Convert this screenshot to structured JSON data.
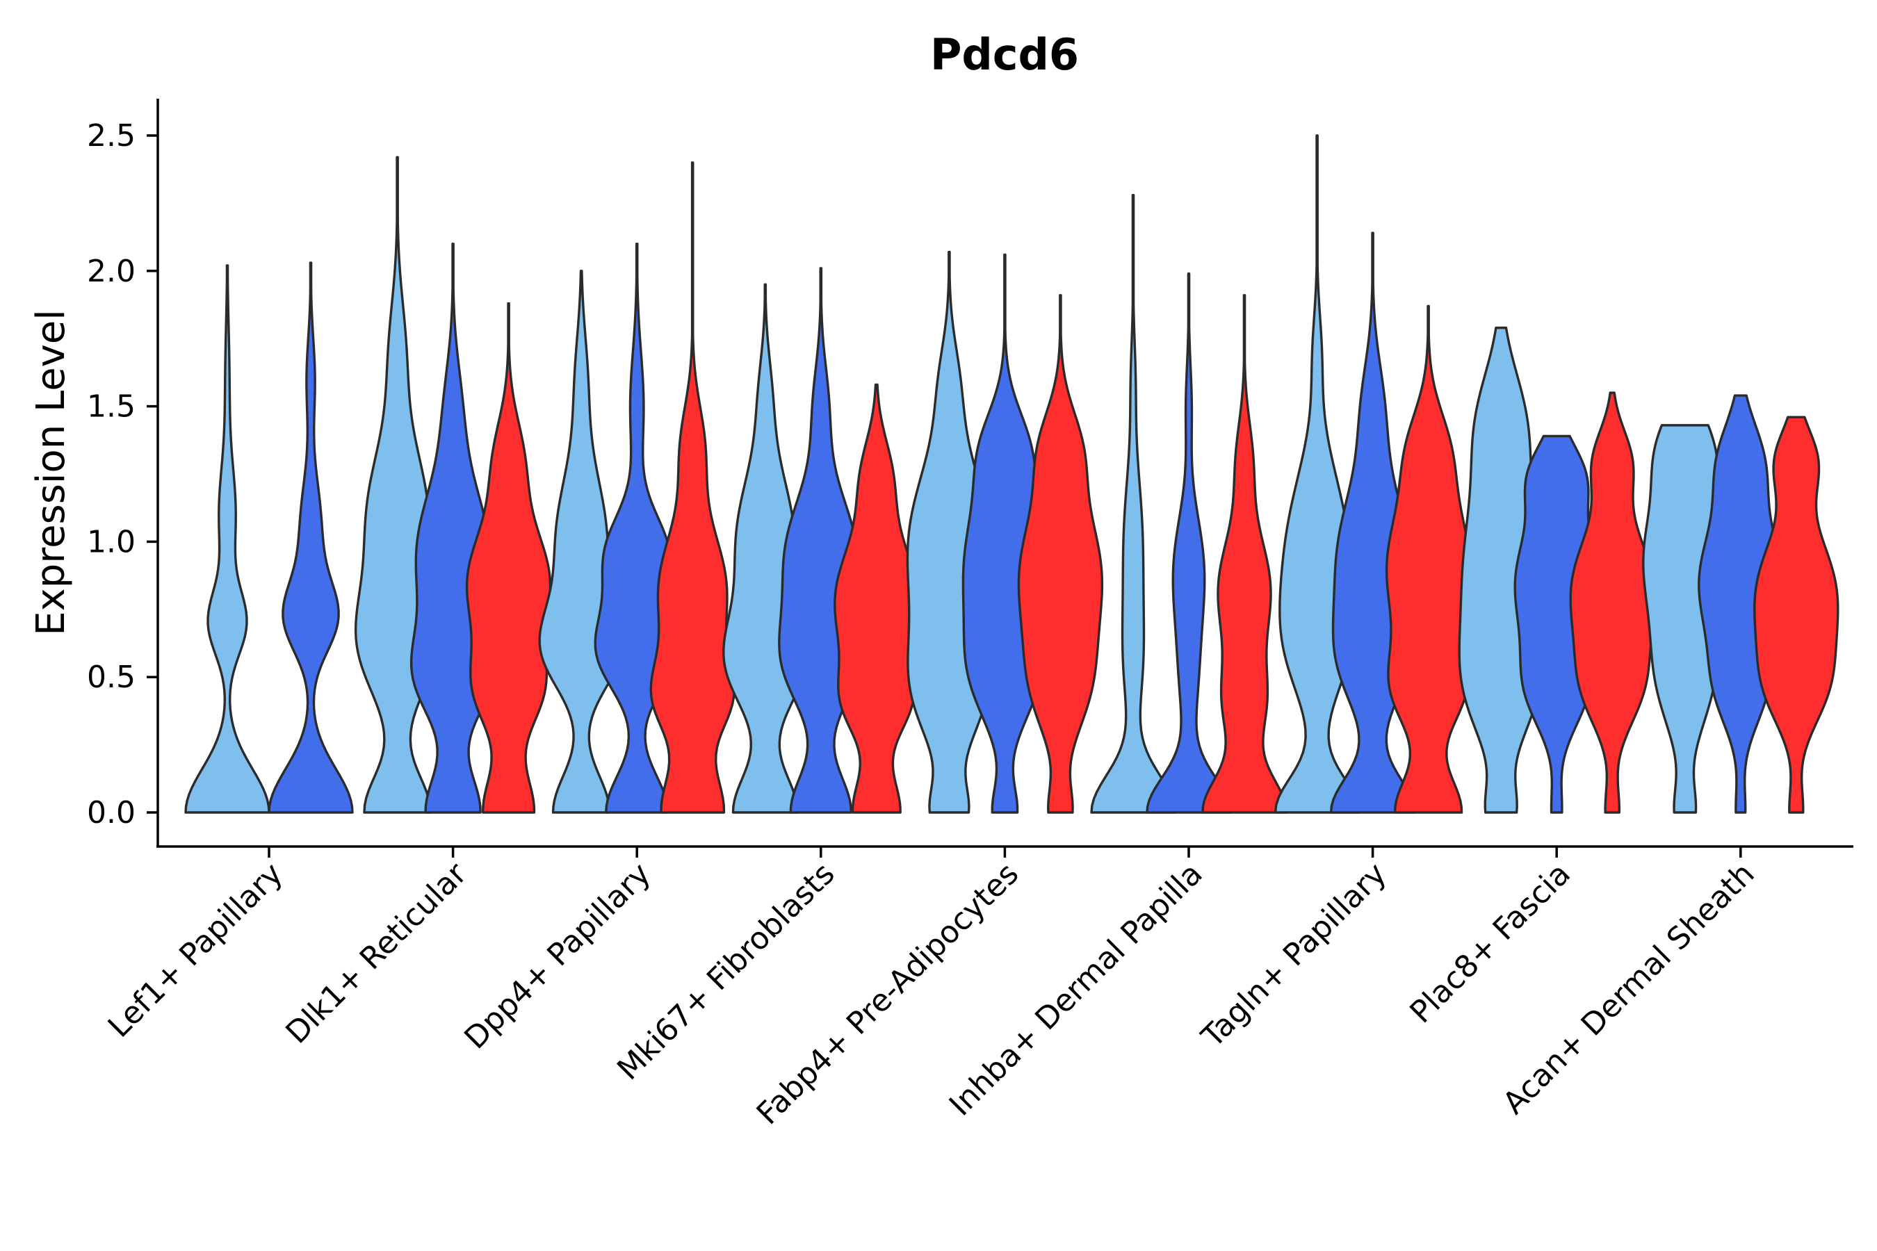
{
  "chart_data": {
    "type": "violin",
    "title": "Pdcd6",
    "xlabel": "",
    "ylabel": "Expression Level",
    "ylim": [
      -0.12,
      2.63
    ],
    "yticks": [
      0.0,
      0.5,
      1.0,
      1.5,
      2.0,
      2.5
    ],
    "ytick_labels": [
      "0.0",
      "0.5",
      "1.0",
      "1.5",
      "2.0",
      "2.5"
    ],
    "grid": false,
    "legend": "none",
    "series_colors": [
      "#7fbfed",
      "#436eeb",
      "#fe2e2e"
    ],
    "categories": [
      "Lef1+ Papillary",
      "Dlk1+ Reticular",
      "Dpp4+ Papillary",
      "Mki67+ Fibroblasts",
      "Fabp4+ Pre-Adipocytes",
      "Inhba+ Dermal Papilla",
      "Tagln+ Papillary",
      "Plac8+ Fascia",
      "Acan+ Dermal Sheath"
    ],
    "violins": [
      {
        "category": "Lef1+ Papillary",
        "series": 0,
        "max": 2.02,
        "scale": 0.6,
        "peaks": [
          [
            0.0,
            0.16,
            1.0
          ],
          [
            0.7,
            0.12,
            0.45
          ],
          [
            1.1,
            0.18,
            0.2
          ],
          [
            1.6,
            0.2,
            0.05
          ]
        ]
      },
      {
        "category": "Lef1+ Papillary",
        "series": 1,
        "max": 2.03,
        "scale": 0.6,
        "peaks": [
          [
            0.0,
            0.16,
            1.0
          ],
          [
            0.72,
            0.13,
            0.62
          ],
          [
            1.05,
            0.18,
            0.25
          ],
          [
            1.6,
            0.15,
            0.1
          ]
        ]
      },
      {
        "category": "Dlk1+ Reticular",
        "series": 0,
        "max": 2.42,
        "scale": 0.6,
        "peaks": [
          [
            0.0,
            0.14,
            0.5
          ],
          [
            0.62,
            0.2,
            0.55
          ],
          [
            1.1,
            0.25,
            0.45
          ],
          [
            1.7,
            0.2,
            0.12
          ]
        ]
      },
      {
        "category": "Dlk1+ Reticular",
        "series": 1,
        "max": 2.1,
        "scale": 0.6,
        "peaks": [
          [
            0.0,
            0.14,
            0.45
          ],
          [
            0.5,
            0.16,
            0.55
          ],
          [
            0.95,
            0.25,
            0.6
          ],
          [
            1.5,
            0.18,
            0.12
          ]
        ]
      },
      {
        "category": "Dlk1+ Reticular",
        "series": 2,
        "max": 1.88,
        "scale": 0.6,
        "peaks": [
          [
            0.0,
            0.14,
            0.45
          ],
          [
            0.45,
            0.15,
            0.55
          ],
          [
            0.85,
            0.2,
            0.72
          ],
          [
            1.3,
            0.16,
            0.25
          ]
        ]
      },
      {
        "category": "Dpp4+ Papillary",
        "series": 0,
        "max": 2.0,
        "scale": 0.6,
        "peaks": [
          [
            0.0,
            0.14,
            0.5
          ],
          [
            0.6,
            0.15,
            0.6
          ],
          [
            1.0,
            0.25,
            0.45
          ],
          [
            1.6,
            0.18,
            0.1
          ]
        ]
      },
      {
        "category": "Dpp4+ Papillary",
        "series": 1,
        "max": 2.1,
        "scale": 0.6,
        "peaks": [
          [
            0.0,
            0.14,
            0.55
          ],
          [
            0.6,
            0.15,
            0.7
          ],
          [
            0.95,
            0.15,
            0.55
          ],
          [
            1.5,
            0.2,
            0.12
          ]
        ]
      },
      {
        "category": "Dpp4+ Papillary",
        "series": 2,
        "max": 2.4,
        "scale": 0.6,
        "peaks": [
          [
            0.0,
            0.15,
            0.55
          ],
          [
            0.42,
            0.14,
            0.6
          ],
          [
            0.82,
            0.22,
            0.6
          ],
          [
            1.35,
            0.16,
            0.2
          ]
        ]
      },
      {
        "category": "Mki67+ Fibroblasts",
        "series": 0,
        "max": 1.95,
        "scale": 0.6,
        "peaks": [
          [
            0.0,
            0.14,
            0.5
          ],
          [
            0.55,
            0.17,
            0.55
          ],
          [
            1.0,
            0.25,
            0.45
          ],
          [
            1.55,
            0.15,
            0.08
          ]
        ]
      },
      {
        "category": "Mki67+ Fibroblasts",
        "series": 1,
        "max": 2.01,
        "scale": 0.6,
        "peaks": [
          [
            0.0,
            0.14,
            0.5
          ],
          [
            0.55,
            0.17,
            0.55
          ],
          [
            0.95,
            0.22,
            0.58
          ],
          [
            1.5,
            0.16,
            0.12
          ]
        ]
      },
      {
        "category": "Mki67+ Fibroblasts",
        "series": 2,
        "max": 1.58,
        "scale": 0.6,
        "peaks": [
          [
            0.0,
            0.13,
            0.4
          ],
          [
            0.4,
            0.13,
            0.45
          ],
          [
            0.78,
            0.22,
            0.7
          ],
          [
            1.25,
            0.14,
            0.22
          ]
        ]
      },
      {
        "category": "Fabp4+ Pre-Adipocytes",
        "series": 0,
        "max": 2.07,
        "scale": 0.6,
        "peaks": [
          [
            0.0,
            0.1,
            0.25
          ],
          [
            0.45,
            0.2,
            0.45
          ],
          [
            0.98,
            0.3,
            0.6
          ],
          [
            1.6,
            0.15,
            0.1
          ]
        ]
      },
      {
        "category": "Fabp4+ Pre-Adipocytes",
        "series": 1,
        "max": 2.06,
        "scale": 0.6,
        "peaks": [
          [
            0.0,
            0.1,
            0.2
          ],
          [
            0.5,
            0.18,
            0.45
          ],
          [
            0.92,
            0.25,
            0.65
          ],
          [
            1.35,
            0.15,
            0.3
          ]
        ]
      },
      {
        "category": "Fabp4+ Pre-Adipocytes",
        "series": 2,
        "max": 1.91,
        "scale": 0.6,
        "peaks": [
          [
            0.0,
            0.1,
            0.2
          ],
          [
            0.45,
            0.18,
            0.4
          ],
          [
            0.88,
            0.25,
            0.72
          ],
          [
            1.35,
            0.15,
            0.3
          ]
        ]
      },
      {
        "category": "Inhba+ Dermal Papilla",
        "series": 0,
        "max": 2.28,
        "scale": 0.6,
        "peaks": [
          [
            0.0,
            0.14,
            1.0
          ],
          [
            0.55,
            0.2,
            0.2
          ],
          [
            1.0,
            0.25,
            0.22
          ],
          [
            1.6,
            0.15,
            0.05
          ]
        ]
      },
      {
        "category": "Inhba+ Dermal Papilla",
        "series": 1,
        "max": 1.99,
        "scale": 0.6,
        "peaks": [
          [
            0.0,
            0.13,
            1.0
          ],
          [
            0.5,
            0.2,
            0.2
          ],
          [
            0.9,
            0.2,
            0.35
          ],
          [
            1.5,
            0.15,
            0.07
          ]
        ]
      },
      {
        "category": "Inhba+ Dermal Papilla",
        "series": 2,
        "max": 1.91,
        "scale": 0.6,
        "peaks": [
          [
            0.0,
            0.13,
            0.95
          ],
          [
            0.4,
            0.15,
            0.45
          ],
          [
            0.82,
            0.2,
            0.6
          ],
          [
            1.3,
            0.15,
            0.18
          ]
        ]
      },
      {
        "category": "Tagln+ Papillary",
        "series": 0,
        "max": 2.5,
        "scale": 0.6,
        "peaks": [
          [
            0.0,
            0.13,
            0.85
          ],
          [
            0.6,
            0.2,
            0.45
          ],
          [
            0.98,
            0.28,
            0.6
          ],
          [
            1.7,
            0.15,
            0.08
          ]
        ]
      },
      {
        "category": "Tagln+ Papillary",
        "series": 1,
        "max": 2.14,
        "scale": 0.6,
        "peaks": [
          [
            0.0,
            0.13,
            0.85
          ],
          [
            0.55,
            0.18,
            0.55
          ],
          [
            0.95,
            0.25,
            0.7
          ],
          [
            1.5,
            0.18,
            0.2
          ]
        ]
      },
      {
        "category": "Tagln+ Papillary",
        "series": 2,
        "max": 1.87,
        "scale": 0.6,
        "peaks": [
          [
            0.0,
            0.13,
            0.6
          ],
          [
            0.45,
            0.15,
            0.55
          ],
          [
            0.9,
            0.25,
            0.75
          ],
          [
            1.35,
            0.15,
            0.28
          ]
        ]
      },
      {
        "category": "Plac8+ Fascia",
        "series": 0,
        "max": 1.79,
        "scale": 0.6,
        "peaks": [
          [
            0.0,
            0.1,
            0.2
          ],
          [
            0.45,
            0.2,
            0.4
          ],
          [
            0.9,
            0.3,
            0.55
          ],
          [
            1.45,
            0.2,
            0.3
          ]
        ]
      },
      {
        "category": "Plac8+ Fascia",
        "series": 1,
        "max": 1.39,
        "scale": 0.6,
        "peaks": [
          [
            0.0,
            0.1,
            0.08
          ],
          [
            0.45,
            0.15,
            0.4
          ],
          [
            0.85,
            0.22,
            0.65
          ],
          [
            1.25,
            0.12,
            0.35
          ]
        ]
      },
      {
        "category": "Plac8+ Fascia",
        "series": 2,
        "max": 1.55,
        "scale": 0.6,
        "peaks": [
          [
            0.0,
            0.1,
            0.12
          ],
          [
            0.45,
            0.15,
            0.4
          ],
          [
            0.82,
            0.22,
            0.72
          ],
          [
            1.3,
            0.12,
            0.3
          ]
        ]
      },
      {
        "category": "Acan+ Dermal Sheath",
        "series": 0,
        "max": 1.43,
        "scale": 0.6,
        "peaks": [
          [
            0.0,
            0.1,
            0.15
          ],
          [
            0.5,
            0.2,
            0.4
          ],
          [
            0.95,
            0.22,
            0.6
          ],
          [
            1.35,
            0.15,
            0.35
          ]
        ]
      },
      {
        "category": "Acan+ Dermal Sheath",
        "series": 1,
        "max": 1.54,
        "scale": 0.6,
        "peaks": [
          [
            0.0,
            0.1,
            0.08
          ],
          [
            0.45,
            0.15,
            0.35
          ],
          [
            0.85,
            0.22,
            0.72
          ],
          [
            1.3,
            0.15,
            0.35
          ]
        ]
      },
      {
        "category": "Acan+ Dermal Sheath",
        "series": 2,
        "max": 1.46,
        "scale": 0.6,
        "peaks": [
          [
            0.0,
            0.1,
            0.12
          ],
          [
            0.45,
            0.15,
            0.4
          ],
          [
            0.8,
            0.22,
            0.72
          ],
          [
            1.3,
            0.12,
            0.35
          ]
        ]
      }
    ]
  }
}
